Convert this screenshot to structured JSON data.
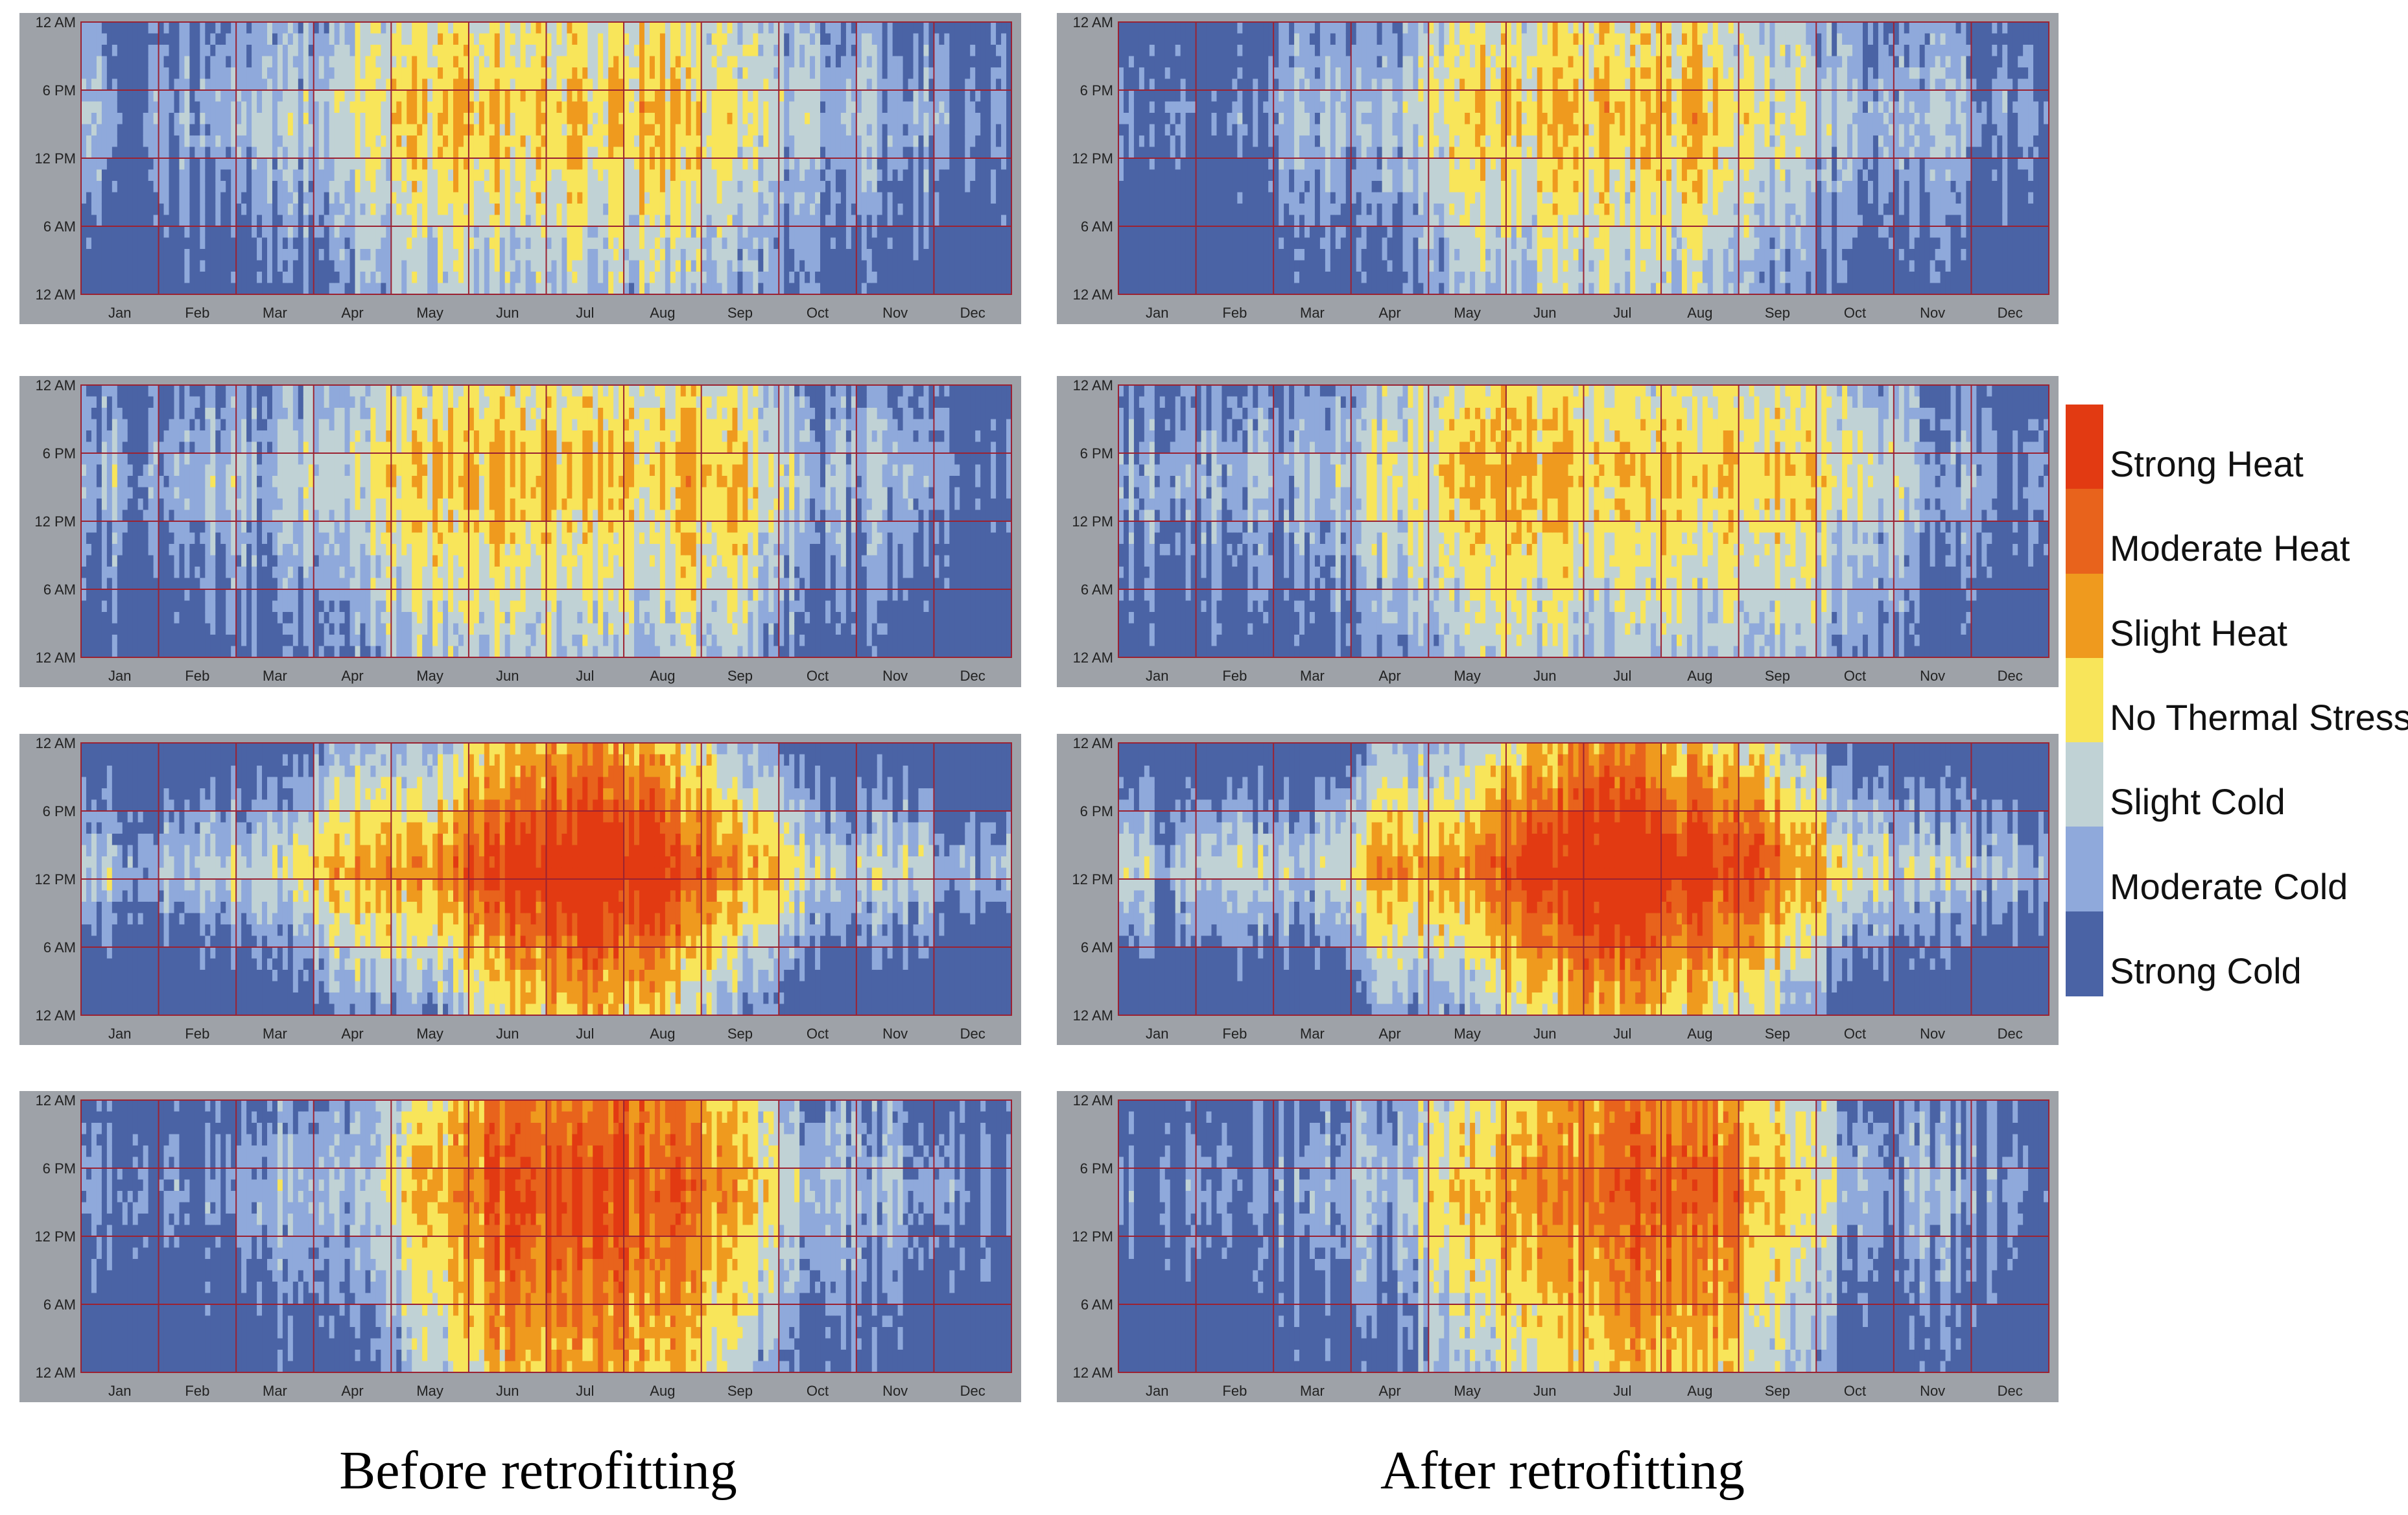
{
  "chart_data": {
    "type": "heatmap",
    "description_title": "",
    "months": [
      "Jan",
      "Feb",
      "Mar",
      "Apr",
      "May",
      "Jun",
      "Jul",
      "Aug",
      "Sep",
      "Oct",
      "Nov",
      "Dec"
    ],
    "hours_axis": [
      "12 AM",
      "6 PM",
      "12 PM",
      "6 AM",
      "12 AM"
    ],
    "categories": [
      "Strong Heat",
      "Moderate Heat",
      "Slight Heat",
      "No Thermal Stress",
      "Slight Cold",
      "Moderate Cold",
      "Strong Cold"
    ],
    "colors": {
      "Strong Heat": "#e23a12",
      "Moderate Heat": "#e8631c",
      "Slight Heat": "#ef9a1e",
      "No Thermal Stress": "#f8e55a",
      "Slight Cold": "#c0d2d5",
      "Moderate Cold": "#8fa9db",
      "Strong Cold": "#4a63a5"
    },
    "grid_color": "#9b2232",
    "frame_color": "#9ea2a8",
    "captions": {
      "before": "Before retrofitting",
      "after": "After retrofitting"
    },
    "monthly_dominant_class": {
      "row1_before": [
        "Strong Cold",
        "Moderate Cold",
        "Moderate Cold",
        "Slight Cold",
        "No Thermal Stress",
        "No Thermal Stress",
        "No Thermal Stress",
        "No Thermal Stress",
        "Slight Cold",
        "Moderate Cold",
        "Moderate Cold",
        "Strong Cold"
      ],
      "row1_after": [
        "Strong Cold",
        "Strong Cold",
        "Moderate Cold",
        "Moderate Cold",
        "No Thermal Stress",
        "No Thermal Stress",
        "No Thermal Stress",
        "No Thermal Stress",
        "Slight Cold",
        "Moderate Cold",
        "Moderate Cold",
        "Strong Cold"
      ],
      "row2_before": [
        "Strong Cold",
        "Moderate Cold",
        "Moderate Cold",
        "Slight Cold",
        "No Thermal Stress",
        "No Thermal Stress",
        "No Thermal Stress",
        "No Thermal Stress",
        "No Thermal Stress",
        "Moderate Cold",
        "Moderate Cold",
        "Strong Cold"
      ],
      "row2_after": [
        "Strong Cold",
        "Moderate Cold",
        "Moderate Cold",
        "Slight Cold",
        "No Thermal Stress",
        "No Thermal Stress",
        "No Thermal Stress",
        "No Thermal Stress",
        "No Thermal Stress",
        "Slight Cold",
        "Moderate Cold",
        "Strong Cold"
      ],
      "row3_before": [
        "Strong Cold",
        "Moderate Cold",
        "Moderate Cold",
        "No Thermal Stress",
        "No Thermal Stress",
        "Moderate Heat",
        "Strong Heat",
        "Moderate Heat",
        "No Thermal Stress",
        "Moderate Cold",
        "Moderate Cold",
        "Strong Cold"
      ],
      "row3_after": [
        "Strong Cold",
        "Moderate Cold",
        "Moderate Cold",
        "No Thermal Stress",
        "No Thermal Stress",
        "Moderate Heat",
        "Strong Heat",
        "Moderate Heat",
        "Slight Heat",
        "Moderate Cold",
        "Moderate Cold",
        "Strong Cold"
      ],
      "row4_before": [
        "Strong Cold",
        "Strong Cold",
        "Moderate Cold",
        "Moderate Cold",
        "No Thermal Stress",
        "Moderate Heat",
        "Moderate Heat",
        "Moderate Heat",
        "No Thermal Stress",
        "Moderate Cold",
        "Moderate Cold",
        "Strong Cold"
      ],
      "row4_after": [
        "Strong Cold",
        "Strong Cold",
        "Moderate Cold",
        "Moderate Cold",
        "No Thermal Stress",
        "Slight Heat",
        "Moderate Heat",
        "Moderate Heat",
        "No Thermal Stress",
        "Moderate Cold",
        "Moderate Cold",
        "Strong Cold"
      ]
    }
  }
}
